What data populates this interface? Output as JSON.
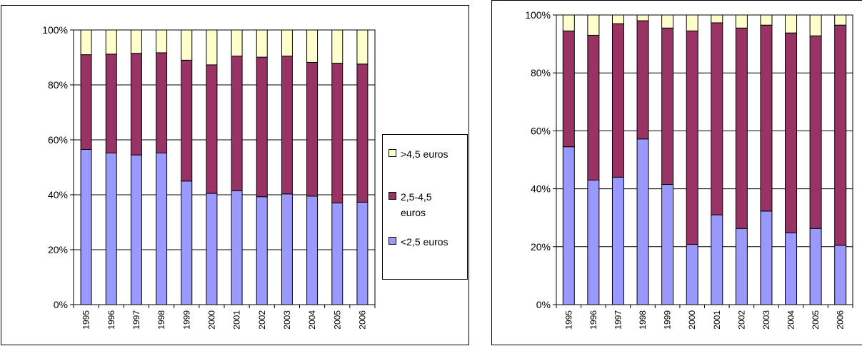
{
  "colors": {
    "low": "#9999ff",
    "mid": "#993366",
    "high": "#ffffcc"
  },
  "chart_data": [
    {
      "type": "bar",
      "stacked": true,
      "categories": [
        "1995",
        "1996",
        "1997",
        "1998",
        "1999",
        "2000",
        "2001",
        "2002",
        "2003",
        "2004",
        "2005",
        "2006"
      ],
      "series": [
        {
          "name": "<2,5 euros",
          "values": [
            56.5,
            55.2,
            54.5,
            55.2,
            45.0,
            40.5,
            41.5,
            39.3,
            40.3,
            39.5,
            37.0,
            37.3
          ]
        },
        {
          "name": "2,5-4,5 euros",
          "values": [
            34.5,
            36.0,
            37.0,
            36.5,
            44.0,
            46.8,
            49.0,
            50.8,
            50.2,
            48.7,
            50.9,
            50.3
          ]
        },
        {
          "name": ">4,5 euros",
          "values": [
            9.0,
            8.8,
            8.5,
            8.3,
            11.0,
            12.7,
            9.5,
            9.9,
            9.5,
            11.8,
            12.1,
            12.4
          ]
        }
      ],
      "ylim": [
        0,
        100
      ],
      "yticks": [
        "0%",
        "20%",
        "40%",
        "60%",
        "80%",
        "100%"
      ],
      "grid": true,
      "legend": {
        "position": "right",
        "order": [
          ">4,5 euros",
          "2,5-4,5 euros",
          "<2,5 euros"
        ]
      }
    },
    {
      "type": "bar",
      "stacked": true,
      "categories": [
        "1995",
        "1996",
        "1997",
        "1998",
        "1999",
        "2000",
        "2001",
        "2002",
        "2003",
        "2004",
        "2005",
        "2006"
      ],
      "series": [
        {
          "name": "<2,5 euros",
          "values": [
            54.5,
            43.0,
            44.0,
            57.2,
            41.5,
            20.8,
            31.0,
            26.3,
            32.3,
            24.8,
            26.3,
            20.5
          ]
        },
        {
          "name": "2,5-4,5 euros",
          "values": [
            40.0,
            50.0,
            53.0,
            40.8,
            54.0,
            73.7,
            66.3,
            69.2,
            64.2,
            69.0,
            66.5,
            76.0
          ]
        },
        {
          "name": ">4,5 euros",
          "values": [
            5.5,
            7.0,
            3.0,
            2.0,
            4.5,
            5.5,
            2.7,
            4.5,
            3.5,
            6.2,
            7.2,
            3.5
          ]
        }
      ],
      "ylim": [
        0,
        100
      ],
      "yticks": [
        "0%",
        "20%",
        "40%",
        "60%",
        "80%",
        "100%"
      ],
      "grid": true,
      "legend": null
    }
  ]
}
